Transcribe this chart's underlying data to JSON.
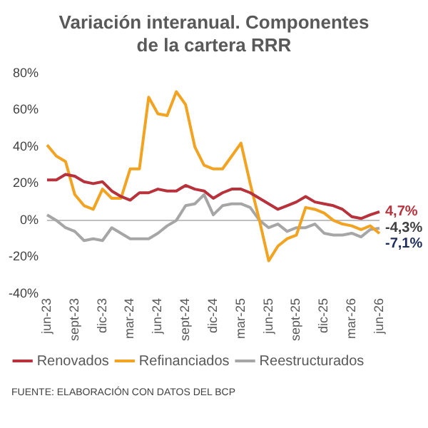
{
  "chart_data": {
    "type": "line",
    "title": "Variación interanual. Componentes de la cartera RRR",
    "categories": [
      "jun-23",
      null,
      null,
      "sept-23",
      null,
      null,
      "dic-23",
      null,
      null,
      "mar-24",
      null,
      null,
      "jun-24",
      null,
      null,
      "sept-24",
      null,
      null,
      "dic-24",
      null,
      null,
      "mar-25",
      null,
      null,
      "jun-25",
      null,
      null,
      "sept-25",
      null,
      null,
      "dic-25",
      null,
      null,
      "mar-26",
      null,
      null,
      "jun-26"
    ],
    "series": [
      {
        "name": "Renovados",
        "color": "#b8323c",
        "values": [
          22,
          22,
          25,
          24,
          21,
          20,
          21,
          16,
          13,
          11,
          15,
          15,
          17,
          16,
          16,
          19,
          17,
          16,
          12,
          15,
          17,
          17,
          15,
          12,
          9,
          6,
          8,
          10,
          13,
          10,
          9,
          8,
          6,
          2,
          1,
          3,
          4.7
        ]
      },
      {
        "name": "Refinanciados",
        "color": "#f2a322",
        "values": [
          41,
          35,
          32,
          14,
          8,
          6,
          17,
          12,
          12,
          28,
          28,
          67,
          58,
          57,
          70,
          63,
          40,
          30,
          28,
          28,
          35,
          42,
          20,
          0,
          -22,
          -14,
          -10,
          -8,
          7,
          6,
          4,
          0,
          -2,
          -3,
          -5,
          -3,
          -7.1
        ]
      },
      {
        "name": "Reestructurados",
        "color": "#a6a6a6",
        "values": [
          3,
          0,
          -4,
          -6,
          -11,
          -10,
          -11,
          -4,
          -7,
          -10,
          -10,
          -10,
          -7,
          -3,
          0,
          8,
          9,
          14,
          3,
          8,
          9,
          9,
          7,
          0,
          -4,
          -2,
          -6,
          -4,
          -4,
          -2,
          -7,
          -8,
          -8,
          -7,
          -9,
          -5,
          -4.3
        ]
      }
    ],
    "ylim": [
      -40,
      80
    ],
    "yticks": [
      {
        "value": -40,
        "label": "-40%"
      },
      {
        "value": -20,
        "label": "-20%"
      },
      {
        "value": 0,
        "label": "0%"
      },
      {
        "value": 20,
        "label": "20%"
      },
      {
        "value": 40,
        "label": "40%"
      },
      {
        "value": 60,
        "label": "60%"
      },
      {
        "value": 80,
        "label": "80%"
      }
    ],
    "ref_lines": [
      {
        "axis": "y",
        "value": 0,
        "color": "#bfbfbf"
      }
    ],
    "grid": false,
    "legend": "bottom",
    "marker": "none",
    "line_style": "solid",
    "annotations": [
      {
        "text": "4,7%",
        "x": "jun-26",
        "y": 4.7
      },
      {
        "text": "-4,3%",
        "x": "jun-26",
        "y": -4.3
      },
      {
        "text": "-7,1%",
        "x": "jun-26",
        "y": -7.1
      },
      "FUENTE: ELABORACIÓN CON DATOS DEL BCP"
    ]
  }
}
